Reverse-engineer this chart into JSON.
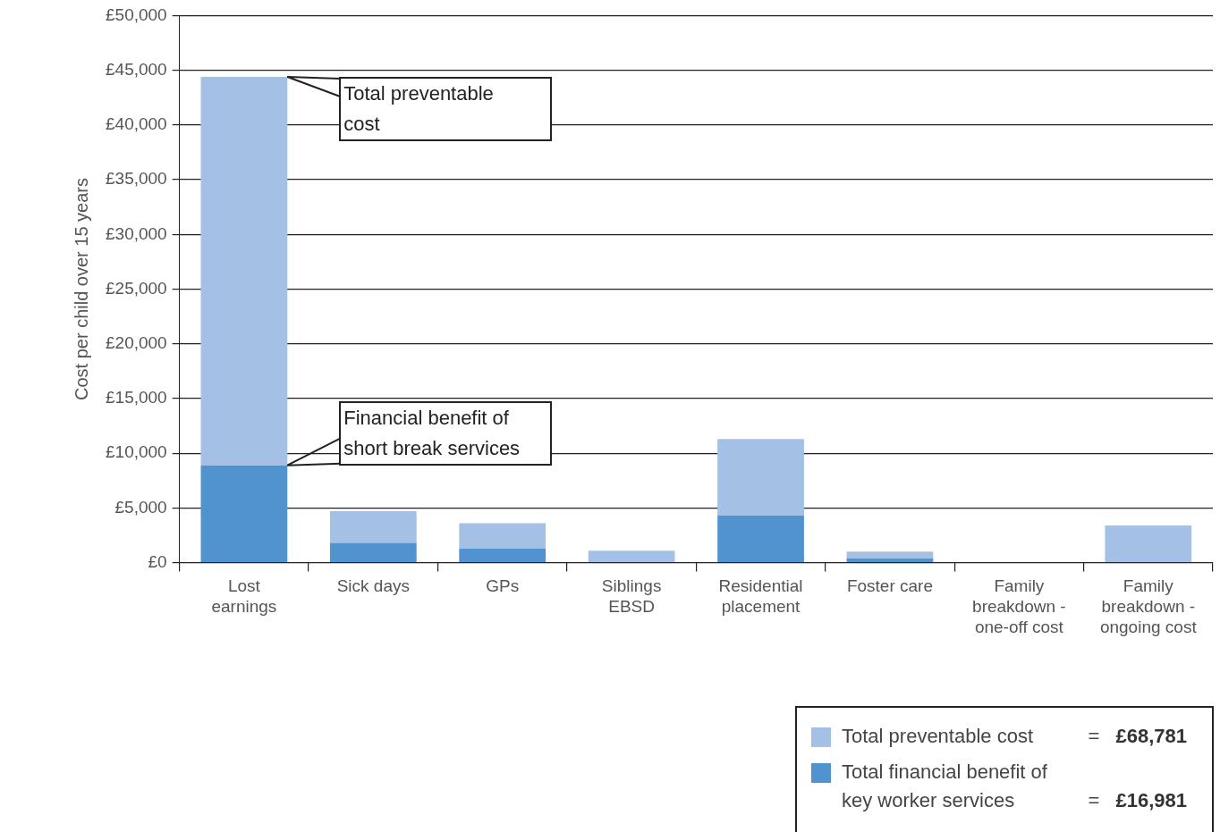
{
  "chart_data": {
    "type": "bar",
    "stacked": true,
    "ylabel": "Cost per child over 15 years",
    "categories": [
      "Lost earnings",
      "Sick days",
      "GPs",
      "Siblings EBSD",
      "Residential placement",
      "Foster care",
      "Family breakdown - one-off cost",
      "Family breakdown - ongoing cost"
    ],
    "series": [
      {
        "name": "Total financial benefit of key worker services",
        "color": "#5193cf",
        "values": [
          8900,
          1800,
          1300,
          0,
          4300,
          400,
          0,
          0
        ]
      },
      {
        "name": "Total preventable cost",
        "color": "#a4c0e4",
        "values": [
          35500,
          2900,
          2300,
          1100,
          7000,
          600,
          0,
          3400
        ]
      }
    ],
    "ylim": [
      0,
      50000
    ],
    "yticks": [
      {
        "value": 0,
        "label": "£0"
      },
      {
        "value": 5000,
        "label": "£5,000"
      },
      {
        "value": 10000,
        "label": "£10,000"
      },
      {
        "value": 15000,
        "label": "£15,000"
      },
      {
        "value": 20000,
        "label": "£20,000"
      },
      {
        "value": 25000,
        "label": "£25,000"
      },
      {
        "value": 30000,
        "label": "£30,000"
      },
      {
        "value": 35000,
        "label": "£35,000"
      },
      {
        "value": 40000,
        "label": "£40,000"
      },
      {
        "value": 45000,
        "label": "£45,000"
      },
      {
        "value": 50000,
        "label": "£50,000"
      }
    ],
    "grid": "y",
    "legend": "bottom right",
    "annotations": [
      "Total preventable cost",
      "Financial benefit of short break services",
      "= £68,781",
      "= £16,981"
    ]
  }
}
